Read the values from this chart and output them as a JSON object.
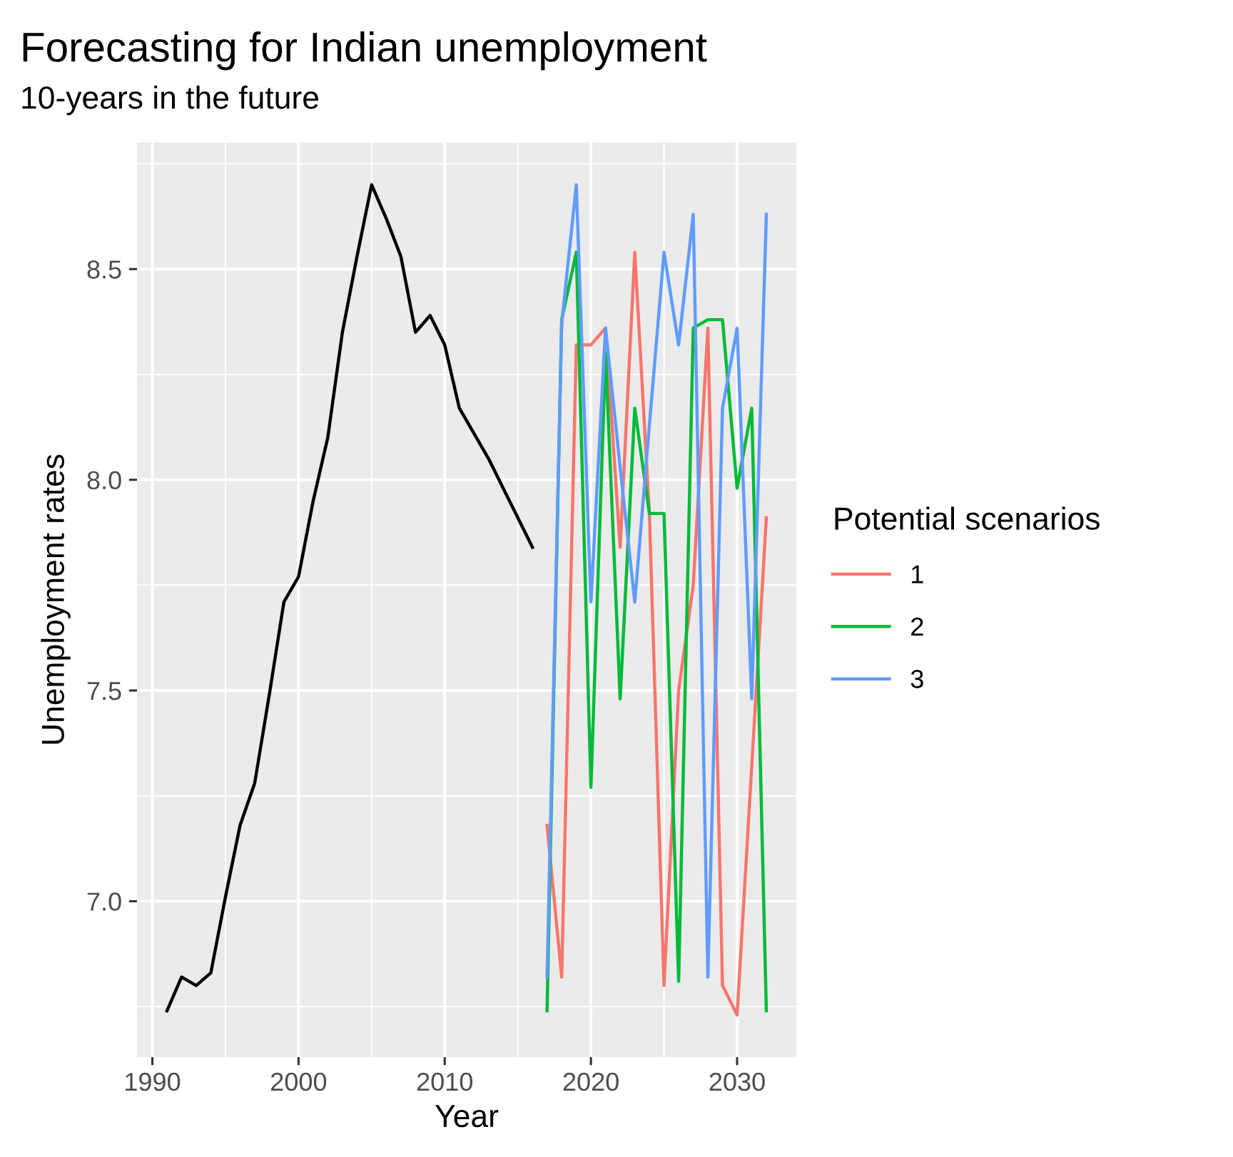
{
  "chart_data": {
    "type": "line",
    "title": "Forecasting for Indian unemployment",
    "subtitle": "10-years in the future",
    "xlabel": "Year",
    "ylabel": "Unemployment rates",
    "legend_title": "Potential scenarios",
    "series": [
      {
        "color": "#000000",
        "x": [
          1991,
          1992,
          1993,
          1994,
          1995,
          1996,
          1997,
          1998,
          1999,
          2000,
          2001,
          2002,
          2003,
          2004,
          2005,
          2006,
          2007,
          2008,
          2009,
          2010,
          2011,
          2012,
          2013,
          2014,
          2015,
          2016
        ],
        "values": [
          6.74,
          6.82,
          6.8,
          6.83,
          7.01,
          7.18,
          7.28,
          7.49,
          7.71,
          7.77,
          7.95,
          8.1,
          8.35,
          8.53,
          8.7,
          8.62,
          8.53,
          8.35,
          8.39,
          8.32,
          8.17,
          8.11,
          8.05,
          7.98,
          7.91,
          7.84
        ]
      },
      {
        "name": "1",
        "color": "#f8766d",
        "x": [
          2017,
          2018,
          2019,
          2020,
          2021,
          2022,
          2023,
          2024,
          2025,
          2026,
          2027,
          2028,
          2029,
          2030,
          2031,
          2032
        ],
        "values": [
          7.18,
          6.82,
          8.32,
          8.32,
          8.36,
          7.84,
          8.54,
          7.92,
          6.8,
          7.5,
          7.75,
          8.36,
          6.8,
          6.73,
          7.32,
          7.91
        ]
      },
      {
        "name": "2",
        "color": "#00ba38",
        "x": [
          2017,
          2018,
          2019,
          2020,
          2021,
          2022,
          2023,
          2024,
          2025,
          2026,
          2027,
          2028,
          2029,
          2030,
          2031,
          2032
        ],
        "values": [
          6.74,
          8.38,
          8.54,
          7.27,
          8.3,
          7.48,
          8.17,
          7.92,
          7.92,
          6.81,
          8.36,
          8.38,
          8.38,
          7.98,
          8.17,
          6.74
        ]
      },
      {
        "name": "3",
        "color": "#619cff",
        "x": [
          2017,
          2018,
          2019,
          2020,
          2021,
          2022,
          2023,
          2024,
          2025,
          2026,
          2027,
          2028,
          2029,
          2030,
          2031,
          2032
        ],
        "values": [
          6.82,
          8.37,
          8.7,
          7.71,
          8.36,
          8.03,
          7.71,
          8.13,
          8.54,
          8.32,
          8.63,
          6.82,
          8.17,
          8.36,
          7.48,
          8.63
        ]
      }
    ],
    "xlim": [
      1988.95,
      2034.05
    ],
    "xticks": [
      1990,
      2000,
      2010,
      2020,
      2030
    ],
    "ylim": [
      6.63,
      8.8
    ],
    "yticks": [
      {
        "value": 7,
        "label": "7.0"
      },
      {
        "value": 7.5,
        "label": "7.5"
      },
      {
        "value": 8,
        "label": "8.0"
      },
      {
        "value": 8.5,
        "label": "8.5"
      }
    ],
    "grid": true,
    "legend": "right",
    "marker": "none",
    "line_style": "solid"
  }
}
